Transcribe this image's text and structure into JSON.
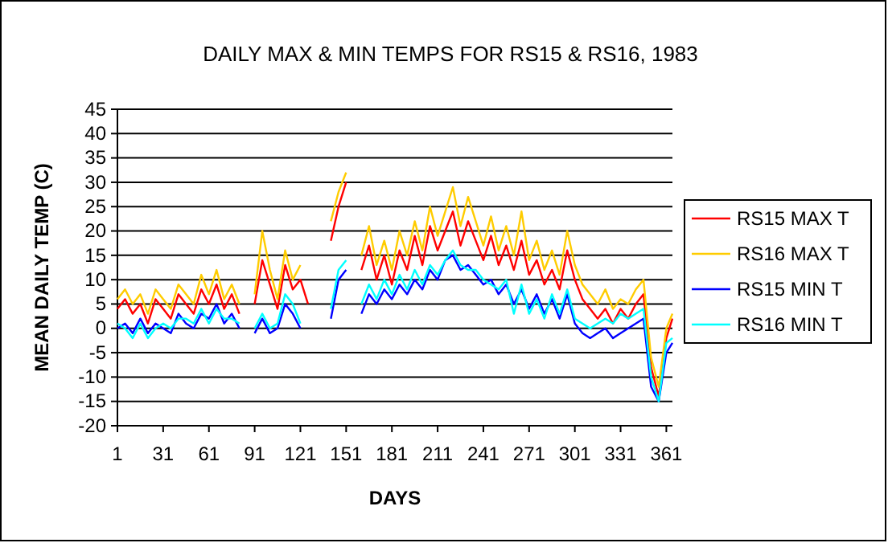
{
  "chart_data": {
    "type": "line",
    "title": "DAILY MAX & MIN TEMPS FOR RS15 & RS16, 1983",
    "xlabel": "DAYS",
    "ylabel": "MEAN DAILY TEMP (C)",
    "x": [
      1,
      6,
      11,
      16,
      21,
      26,
      31,
      36,
      41,
      46,
      51,
      56,
      61,
      66,
      71,
      76,
      81,
      86,
      91,
      96,
      101,
      106,
      111,
      116,
      121,
      126,
      131,
      136,
      141,
      146,
      151,
      156,
      161,
      166,
      171,
      176,
      181,
      186,
      191,
      196,
      201,
      206,
      211,
      216,
      221,
      226,
      231,
      236,
      241,
      246,
      251,
      256,
      261,
      266,
      271,
      276,
      281,
      286,
      291,
      296,
      301,
      306,
      311,
      316,
      321,
      326,
      331,
      336,
      341,
      346,
      351,
      356,
      361,
      365
    ],
    "series": [
      {
        "name": "RS15 MAX T",
        "color": "#ff0000",
        "values": [
          4,
          6,
          3,
          5,
          1,
          6,
          4,
          2,
          7,
          5,
          3,
          8,
          5,
          9,
          4,
          7,
          3,
          null,
          5,
          14,
          9,
          4,
          13,
          8,
          10,
          5,
          null,
          null,
          18,
          25,
          30,
          null,
          12,
          17,
          10,
          15,
          9,
          16,
          12,
          19,
          13,
          21,
          16,
          20,
          24,
          17,
          22,
          18,
          14,
          19,
          13,
          17,
          12,
          18,
          11,
          14,
          9,
          12,
          8,
          16,
          10,
          6,
          4,
          2,
          4,
          1,
          4,
          2,
          5,
          7,
          -8,
          -14,
          -2,
          2
        ]
      },
      {
        "name": "RS16 MAX T",
        "color": "#ffcc00",
        "values": [
          6,
          8,
          5,
          7,
          3,
          8,
          6,
          4,
          9,
          7,
          5,
          11,
          7,
          12,
          6,
          9,
          5,
          null,
          7,
          20,
          12,
          6,
          16,
          10,
          13,
          null,
          null,
          null,
          22,
          28,
          32,
          null,
          15,
          21,
          13,
          18,
          12,
          20,
          15,
          22,
          16,
          25,
          19,
          24,
          29,
          21,
          27,
          22,
          17,
          23,
          16,
          21,
          15,
          24,
          14,
          18,
          12,
          16,
          11,
          20,
          13,
          9,
          7,
          5,
          8,
          4,
          6,
          5,
          8,
          10,
          -6,
          -12,
          0,
          3
        ]
      },
      {
        "name": "RS15 MIN T",
        "color": "#0000ff",
        "values": [
          0,
          1,
          -1,
          2,
          -1,
          1,
          0,
          -1,
          3,
          1,
          0,
          3,
          2,
          5,
          1,
          3,
          0,
          null,
          -1,
          2,
          -1,
          0,
          5,
          3,
          0,
          null,
          null,
          null,
          2,
          10,
          12,
          null,
          3,
          7,
          5,
          8,
          6,
          9,
          7,
          10,
          8,
          12,
          10,
          14,
          15,
          12,
          13,
          11,
          9,
          10,
          7,
          9,
          5,
          8,
          4,
          7,
          3,
          6,
          2,
          7,
          1,
          -1,
          -2,
          -1,
          0,
          -2,
          -1,
          0,
          1,
          2,
          -12,
          -15,
          -5,
          -3
        ]
      },
      {
        "name": "RS16 MIN T",
        "color": "#00ffff",
        "values": [
          1,
          0,
          -2,
          1,
          -2,
          0,
          1,
          0,
          2,
          2,
          1,
          4,
          1,
          4,
          2,
          2,
          1,
          null,
          0,
          3,
          0,
          1,
          7,
          5,
          1,
          null,
          null,
          null,
          4,
          12,
          14,
          null,
          5,
          9,
          6,
          10,
          7,
          11,
          8,
          12,
          9,
          13,
          11,
          14,
          16,
          13,
          12,
          12,
          10,
          9,
          8,
          10,
          3,
          9,
          3,
          6,
          2,
          7,
          3,
          8,
          2,
          1,
          0,
          1,
          2,
          1,
          3,
          2,
          3,
          4,
          -10,
          -15,
          -3,
          -2
        ]
      }
    ],
    "xlim": [
      1,
      365
    ],
    "xticks": [
      1,
      31,
      61,
      91,
      121,
      151,
      181,
      211,
      241,
      271,
      301,
      331,
      361
    ],
    "ylim": [
      -20,
      45
    ],
    "yticks": [
      -20,
      -15,
      -10,
      -5,
      0,
      5,
      10,
      15,
      20,
      25,
      30,
      35,
      40,
      45
    ],
    "grid": "y",
    "legend": "right",
    "marker": "none",
    "line_style": "solid"
  }
}
